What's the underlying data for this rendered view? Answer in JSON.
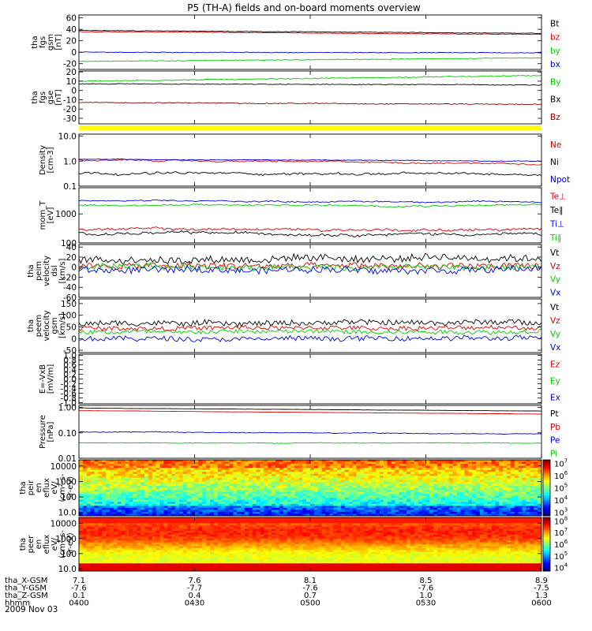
{
  "title": "P5 (TH-A) fields and on-board moments overview",
  "date_label": "2009 Nov 03",
  "orbit": {
    "labels": [
      "tha_X-GSM",
      "tha_Y-GSM",
      "tha_Z-GSM",
      "hhmm"
    ],
    "columns": [
      [
        "7.1",
        "-7.6",
        "0.1",
        "0400"
      ],
      [
        "7.6",
        "-7.7",
        "0.4",
        "0430"
      ],
      [
        "8.1",
        "-7.6",
        "0.7",
        "0500"
      ],
      [
        "8.5",
        "-7.6",
        "1.0",
        "0530"
      ],
      [
        "8.9",
        "-7.5",
        "1.3",
        "0600"
      ]
    ]
  },
  "chart_data": [
    {
      "type": "line",
      "id": "fgs_gsm",
      "ylabel": [
        "tha",
        "fgs",
        "gsm",
        "[nT]"
      ],
      "ylim": [
        -30,
        65
      ],
      "yticks": [
        60,
        40,
        20,
        0,
        -20
      ],
      "log": false,
      "series": [
        {
          "name": "Bt",
          "color": "#000000",
          "base": 38,
          "end": 33,
          "noise": 0.6
        },
        {
          "name": "bz",
          "color": "#dd0000",
          "base": 36,
          "end": 31,
          "noise": 0.6
        },
        {
          "name": "by",
          "color": "#00cc00",
          "base": -16,
          "end": -10,
          "noise": 0.7
        },
        {
          "name": "bx",
          "color": "#0000dd",
          "base": 0,
          "end": -1,
          "noise": 0.7
        }
      ]
    },
    {
      "type": "line",
      "id": "fgs_gse",
      "ylabel": [
        "tha",
        "fgs",
        "gse",
        "[nT]"
      ],
      "ylim": [
        -36,
        21
      ],
      "yticks": [
        20,
        10,
        0,
        -10,
        -20,
        -30
      ],
      "log": false,
      "series": [
        {
          "name": "By",
          "color": "#00cc00",
          "base": 10,
          "end": 16,
          "noise": 0.6
        },
        {
          "name": "Bx",
          "color": "#000000",
          "base": 7,
          "end": 6,
          "noise": 0.5
        },
        {
          "name": "Bz",
          "color": "#880000",
          "base": -13,
          "end": -15,
          "noise": 0.6
        }
      ]
    },
    {
      "type": "line",
      "id": "density",
      "ylabel": [
        "Density",
        "[cm-3]"
      ],
      "ylim": [
        0.1,
        12
      ],
      "yticks": [
        10.0,
        1.0,
        0.1
      ],
      "log": true,
      "series": [
        {
          "name": "Ne",
          "color": "#dd0000",
          "base": 1.1,
          "end": 0.8,
          "noise": 0.08
        },
        {
          "name": "Ni",
          "color": "#000000",
          "base": 0.33,
          "end": 0.3,
          "noise": 0.12
        },
        {
          "name": "Npot",
          "color": "#0000dd",
          "base": 1.2,
          "end": 1.0,
          "noise": 0.03
        }
      ]
    },
    {
      "type": "line",
      "id": "temperature",
      "ylabel": [
        "mom_T",
        "[eV]"
      ],
      "ylim": [
        100,
        8000
      ],
      "yticks": [
        1000,
        100
      ],
      "log": true,
      "series": [
        {
          "name": "Te⊥",
          "color": "#dd0000",
          "base": 300,
          "end": 280,
          "noise": 0.12
        },
        {
          "name": "Te∥",
          "color": "#000000",
          "base": 220,
          "end": 200,
          "noise": 0.12
        },
        {
          "name": "Ti⊥",
          "color": "#0000dd",
          "base": 2800,
          "end": 2600,
          "noise": 0.06
        },
        {
          "name": "Ti∥",
          "color": "#00cc00",
          "base": 2000,
          "end": 2000,
          "noise": 0.08
        }
      ]
    },
    {
      "type": "line",
      "id": "peim_vel",
      "ylabel": [
        "tha",
        "peim",
        "velocity",
        "dsl",
        "[km/s]"
      ],
      "ylim": [
        -60,
        45
      ],
      "yticks": [
        40,
        20,
        0,
        -20,
        -40,
        -60
      ],
      "log": false,
      "series": [
        {
          "name": "Vt",
          "color": "#000000",
          "base": 15,
          "end": 18,
          "noise": 9
        },
        {
          "name": "Vz",
          "color": "#dd0000",
          "base": 2,
          "end": 2,
          "noise": 8
        },
        {
          "name": "Vy",
          "color": "#00cc00",
          "base": 0,
          "end": 0,
          "noise": 7
        },
        {
          "name": "Vx",
          "color": "#0000dd",
          "base": -6,
          "end": -4,
          "noise": 8
        }
      ]
    },
    {
      "type": "line",
      "id": "peem_vel",
      "ylabel": [
        "tha",
        "peem",
        "velocity",
        "gsm",
        "[km/s]"
      ],
      "ylim": [
        -60,
        170
      ],
      "yticks": [
        150,
        100,
        50,
        0,
        -50
      ],
      "log": false,
      "series": [
        {
          "name": "Vt",
          "color": "#000000",
          "base": 65,
          "end": 70,
          "noise": 14
        },
        {
          "name": "Vz",
          "color": "#dd0000",
          "base": 45,
          "end": 45,
          "noise": 12
        },
        {
          "name": "Vy",
          "color": "#00cc00",
          "base": 30,
          "end": 30,
          "noise": 12
        },
        {
          "name": "Vx",
          "color": "#0000dd",
          "base": 0,
          "end": 0,
          "noise": 13
        }
      ]
    },
    {
      "type": "line",
      "id": "efield",
      "ylabel": [
        "E=-VxB",
        "[mV/m]"
      ],
      "ylim": [
        -1.05,
        1.05
      ],
      "yticks": [
        1.0,
        0.8,
        0.6,
        0.4,
        0.2,
        0.0,
        -0.2,
        -0.4,
        -0.6,
        -0.8,
        -1.0
      ],
      "log": false,
      "series": [
        {
          "name": "Ez",
          "color": "#dd0000",
          "base": null
        },
        {
          "name": "Ey",
          "color": "#00cc00",
          "base": null
        },
        {
          "name": "Ex",
          "color": "#0000dd",
          "base": null
        }
      ]
    },
    {
      "type": "line",
      "id": "pressure",
      "ylabel": [
        "Pressure",
        "[nPa]"
      ],
      "ylim": [
        0.01,
        1.2
      ],
      "yticks": [
        1.0,
        0.1,
        0.01
      ],
      "log": true,
      "series": [
        {
          "name": "Pt",
          "color": "#000000",
          "base": 0.95,
          "end": 0.72,
          "noise": 0.01
        },
        {
          "name": "Pb",
          "color": "#dd0000",
          "base": 0.75,
          "end": 0.55,
          "noise": 0.01
        },
        {
          "name": "Pe",
          "color": "#0000dd",
          "base": 0.11,
          "end": 0.09,
          "noise": 0.04
        },
        {
          "name": "Pi",
          "color": "#00cc00",
          "base": 0.04,
          "end": 0.04,
          "noise": 0.03
        }
      ]
    },
    {
      "type": "heatmap",
      "id": "peir",
      "ylabel": [
        "tha",
        "peir",
        "en",
        "eflux",
        "eV/",
        "(cm^2-s-",
        "sr-eV)"
      ],
      "ylim": [
        6,
        25000
      ],
      "yticks": [
        10000,
        1000,
        100,
        10
      ],
      "log": true,
      "colorbar": {
        "ticks": [
          "10^7",
          "10^6",
          "10^5",
          "10^4",
          "10^3"
        ],
        "range": [
          500,
          20000000
        ]
      }
    },
    {
      "type": "heatmap",
      "id": "peer",
      "ylabel": [
        "tha",
        "peer",
        "en",
        "eflux",
        "eV/",
        "(cm^2-s-",
        "sr-eV)"
      ],
      "ylim": [
        7,
        25000
      ],
      "yticks": [
        10000,
        1000,
        100,
        10
      ],
      "log": true,
      "colorbar": {
        "ticks": [
          "10^8",
          "10^7",
          "10^6",
          "10^5",
          "10^4"
        ],
        "range": [
          5000,
          200000000
        ]
      }
    }
  ]
}
